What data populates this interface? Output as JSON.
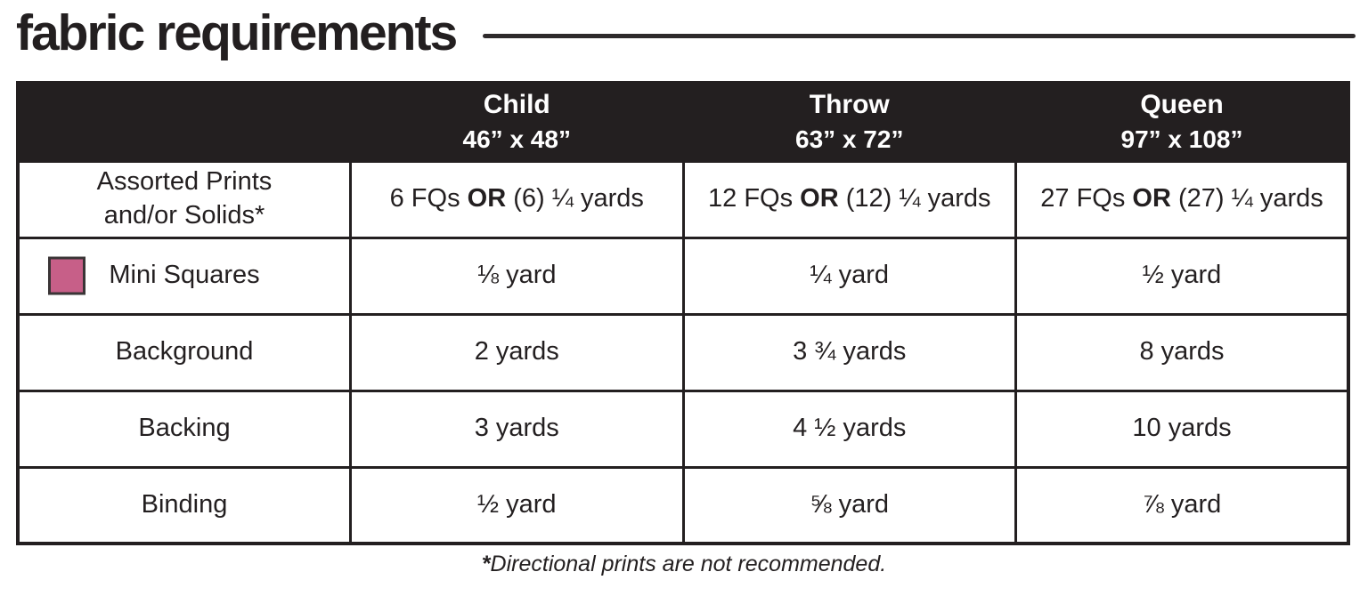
{
  "page": {
    "title": "fabric requirements",
    "footnote": {
      "asterisk": "*",
      "text": "Directional prints are not recommended."
    }
  },
  "colors": {
    "ink": "#231f20",
    "header_bg": "#231f20",
    "header_text": "#ffffff",
    "mini_squares_swatch": "#c75f88"
  },
  "table": {
    "columns": [
      {
        "name": "Child",
        "size": "46” x 48”"
      },
      {
        "name": "Throw",
        "size": "63” x 72”"
      },
      {
        "name": "Queen",
        "size": "97” x 108”"
      }
    ],
    "rows": [
      {
        "label": [
          "Assorted Prints",
          "and/or Solids*"
        ],
        "values": [
          {
            "pre": "6 FQs ",
            "bold": "OR",
            "post": " (6) ¼ yards"
          },
          {
            "pre": "12 FQs ",
            "bold": "OR",
            "post": " (12) ¼ yards"
          },
          {
            "pre": "27 FQs ",
            "bold": "OR",
            "post": " (27) ¼ yards"
          }
        ]
      },
      {
        "label": [
          "Mini Squares"
        ],
        "swatch": "mini-squares",
        "values": [
          {
            "pre": "⅛ yard"
          },
          {
            "pre": "¼ yard"
          },
          {
            "pre": "½ yard"
          }
        ]
      },
      {
        "label": [
          "Background"
        ],
        "values": [
          {
            "pre": "2 yards"
          },
          {
            "pre": "3 ¾ yards"
          },
          {
            "pre": "8 yards"
          }
        ]
      },
      {
        "label": [
          "Backing"
        ],
        "values": [
          {
            "pre": "3 yards"
          },
          {
            "pre": "4 ½ yards"
          },
          {
            "pre": "10 yards"
          }
        ]
      },
      {
        "label": [
          "Binding"
        ],
        "values": [
          {
            "pre": "½ yard"
          },
          {
            "pre": "⅝ yard"
          },
          {
            "pre": "⅞ yard"
          }
        ]
      }
    ]
  }
}
